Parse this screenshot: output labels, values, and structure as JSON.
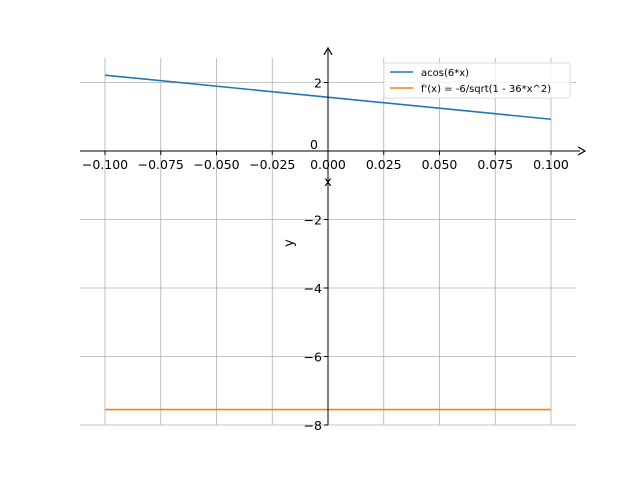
{
  "chart_data": {
    "type": "line",
    "title": "",
    "xlabel": "x",
    "ylabel": "y",
    "xlim": [
      -0.111,
      0.111
    ],
    "ylim": [
      -8.0,
      3.07
    ],
    "grid": true,
    "legend_position": "top-right",
    "xticks": [
      -0.1,
      -0.075,
      -0.05,
      -0.025,
      0.0,
      0.025,
      0.05,
      0.075,
      0.1
    ],
    "xtick_labels": [
      "−0.100",
      "−0.075",
      "−0.050",
      "−0.025",
      "0.000",
      "0.025",
      "0.050",
      "0.075",
      "0.100"
    ],
    "yticks": [
      2,
      0,
      -2,
      -4,
      -6,
      -8
    ],
    "ytick_labels": [
      "2",
      "0",
      "−2",
      "−4",
      "−6",
      "−8"
    ],
    "series": [
      {
        "name": "acos(6*x)",
        "color": "#1f77b4",
        "x": [
          -0.1,
          0.1
        ],
        "y": [
          2.214,
          0.927
        ]
      },
      {
        "name": "f'(x) = -6/sqrt(1 - 36*x^2)",
        "color": "#ff7f0e",
        "x": [
          -0.1,
          0.1
        ],
        "y": [
          -7.55,
          -7.55
        ]
      }
    ]
  }
}
